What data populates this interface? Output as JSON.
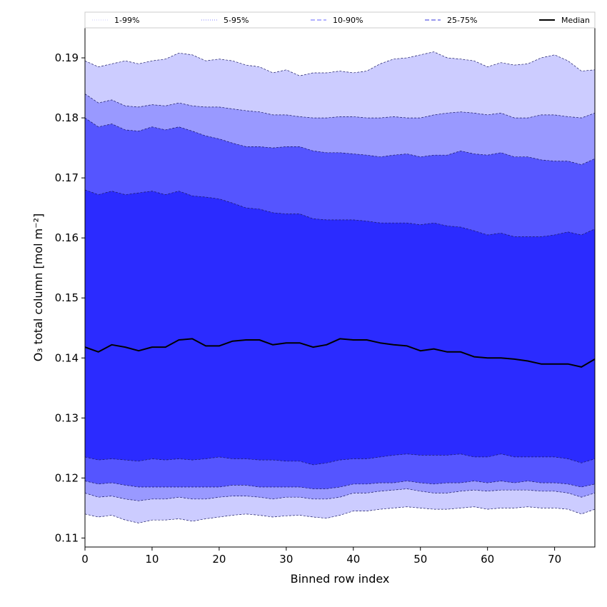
{
  "chart_data": {
    "type": "area",
    "xlabel": "Binned row index",
    "ylabel": "O₃ total column [mol m⁻²]",
    "xlim": [
      0,
      76
    ],
    "ylim": [
      0.1085,
      0.195
    ],
    "xticks": [
      0,
      10,
      20,
      30,
      40,
      50,
      60,
      70
    ],
    "yticks": [
      0.11,
      0.12,
      0.13,
      0.14,
      0.15,
      0.16,
      0.17,
      0.18,
      0.19
    ],
    "grid": false,
    "legend_position": "top",
    "legend": [
      {
        "label": "1-99%",
        "key": "p1_99",
        "color": "#ccccff",
        "line": "#ccccff",
        "dash": "1,2"
      },
      {
        "label": "5-95%",
        "key": "p5_95",
        "color": "#9999ff",
        "line": "#8080ff",
        "dash": "1,2"
      },
      {
        "label": "10-90%",
        "key": "p10_90",
        "color": "#5555ff",
        "line": "#6666ff",
        "dash": "6,3"
      },
      {
        "label": "25-75%",
        "key": "p25_75",
        "color": "#2b2bff",
        "line": "#3333dd",
        "dash": "6,3"
      },
      {
        "label": "Median",
        "key": "median",
        "color": "#000000",
        "line": "#000000",
        "dash": ""
      }
    ],
    "x": [
      0,
      2,
      4,
      6,
      8,
      10,
      12,
      14,
      16,
      18,
      20,
      22,
      24,
      26,
      28,
      30,
      32,
      34,
      36,
      38,
      40,
      42,
      44,
      46,
      48,
      50,
      52,
      54,
      56,
      58,
      60,
      62,
      64,
      66,
      68,
      70,
      72,
      74,
      76
    ],
    "bands": [
      {
        "key": "p1_99",
        "lower": [
          0.114,
          0.1135,
          0.1138,
          0.113,
          0.1125,
          0.113,
          0.113,
          0.1132,
          0.1128,
          0.1132,
          0.1135,
          0.1138,
          0.114,
          0.1138,
          0.1135,
          0.1137,
          0.1138,
          0.1135,
          0.1133,
          0.1138,
          0.1145,
          0.1145,
          0.1148,
          0.115,
          0.1152,
          0.115,
          0.1148,
          0.1148,
          0.115,
          0.1152,
          0.1148,
          0.115,
          0.115,
          0.1152,
          0.115,
          0.115,
          0.1148,
          0.114,
          0.1148
        ],
        "upper": [
          0.1895,
          0.1885,
          0.189,
          0.1895,
          0.189,
          0.1895,
          0.1898,
          0.1908,
          0.1905,
          0.1895,
          0.1898,
          0.1895,
          0.1888,
          0.1885,
          0.1875,
          0.188,
          0.187,
          0.1875,
          0.1875,
          0.1878,
          0.1875,
          0.1878,
          0.189,
          0.1898,
          0.19,
          0.1905,
          0.191,
          0.19,
          0.1898,
          0.1895,
          0.1885,
          0.1892,
          0.1888,
          0.189,
          0.19,
          0.1905,
          0.1895,
          0.1878,
          0.188
        ]
      },
      {
        "key": "p5_95",
        "lower": [
          0.1175,
          0.1168,
          0.117,
          0.1165,
          0.1162,
          0.1165,
          0.1165,
          0.1168,
          0.1165,
          0.1165,
          0.1168,
          0.117,
          0.117,
          0.1168,
          0.1165,
          0.1168,
          0.1168,
          0.1165,
          0.1165,
          0.1168,
          0.1175,
          0.1175,
          0.1178,
          0.118,
          0.1182,
          0.1178,
          0.1175,
          0.1175,
          0.1178,
          0.118,
          0.1178,
          0.118,
          0.118,
          0.118,
          0.1178,
          0.1178,
          0.1175,
          0.1168,
          0.1175
        ],
        "upper": [
          0.184,
          0.1825,
          0.183,
          0.182,
          0.1818,
          0.1822,
          0.182,
          0.1825,
          0.182,
          0.1818,
          0.1818,
          0.1815,
          0.1812,
          0.181,
          0.1805,
          0.1805,
          0.1802,
          0.18,
          0.18,
          0.1802,
          0.1802,
          0.18,
          0.18,
          0.1802,
          0.18,
          0.18,
          0.1805,
          0.1808,
          0.181,
          0.1808,
          0.1805,
          0.1808,
          0.18,
          0.18,
          0.1805,
          0.1805,
          0.1802,
          0.18,
          0.1808
        ]
      },
      {
        "key": "p10_90",
        "lower": [
          0.1195,
          0.119,
          0.1192,
          0.1188,
          0.1185,
          0.1185,
          0.1185,
          0.1185,
          0.1185,
          0.1185,
          0.1185,
          0.1188,
          0.1188,
          0.1185,
          0.1185,
          0.1185,
          0.1185,
          0.1182,
          0.1182,
          0.1185,
          0.119,
          0.119,
          0.1192,
          0.1192,
          0.1195,
          0.1192,
          0.119,
          0.1192,
          0.1192,
          0.1195,
          0.1192,
          0.1195,
          0.1192,
          0.1195,
          0.1192,
          0.1192,
          0.119,
          0.1185,
          0.119
        ],
        "upper": [
          0.18,
          0.1785,
          0.179,
          0.178,
          0.1778,
          0.1785,
          0.178,
          0.1785,
          0.1778,
          0.177,
          0.1765,
          0.1758,
          0.1752,
          0.1752,
          0.175,
          0.1752,
          0.1752,
          0.1745,
          0.1742,
          0.1742,
          0.174,
          0.1738,
          0.1735,
          0.1738,
          0.174,
          0.1735,
          0.1738,
          0.1738,
          0.1745,
          0.174,
          0.1738,
          0.1742,
          0.1735,
          0.1735,
          0.173,
          0.1728,
          0.1728,
          0.1722,
          0.1732
        ]
      },
      {
        "key": "p25_75",
        "lower": [
          0.1235,
          0.123,
          0.1232,
          0.123,
          0.1228,
          0.1232,
          0.123,
          0.1232,
          0.123,
          0.1232,
          0.1235,
          0.1232,
          0.1232,
          0.123,
          0.123,
          0.1228,
          0.1228,
          0.1222,
          0.1225,
          0.123,
          0.1232,
          0.1232,
          0.1235,
          0.1238,
          0.124,
          0.1238,
          0.1238,
          0.1238,
          0.124,
          0.1235,
          0.1235,
          0.124,
          0.1235,
          0.1235,
          0.1235,
          0.1235,
          0.1232,
          0.1225,
          0.1232
        ],
        "upper": [
          0.168,
          0.1672,
          0.1678,
          0.1672,
          0.1675,
          0.1678,
          0.1672,
          0.1678,
          0.167,
          0.1668,
          0.1665,
          0.1658,
          0.165,
          0.1648,
          0.1642,
          0.164,
          0.164,
          0.1632,
          0.163,
          0.163,
          0.163,
          0.1628,
          0.1625,
          0.1625,
          0.1625,
          0.1622,
          0.1625,
          0.162,
          0.1618,
          0.1612,
          0.1605,
          0.1608,
          0.1602,
          0.1602,
          0.1602,
          0.1605,
          0.161,
          0.1605,
          0.1615
        ]
      }
    ],
    "median": [
      0.1418,
      0.141,
      0.1422,
      0.1418,
      0.1412,
      0.1418,
      0.1418,
      0.143,
      0.1432,
      0.142,
      0.142,
      0.1428,
      0.143,
      0.143,
      0.1422,
      0.1425,
      0.1425,
      0.1418,
      0.1422,
      0.1432,
      0.143,
      0.143,
      0.1425,
      0.1422,
      0.142,
      0.1412,
      0.1415,
      0.141,
      0.141,
      0.1402,
      0.14,
      0.14,
      0.1398,
      0.1395,
      0.139,
      0.139,
      0.139,
      0.1385,
      0.1398
    ]
  }
}
